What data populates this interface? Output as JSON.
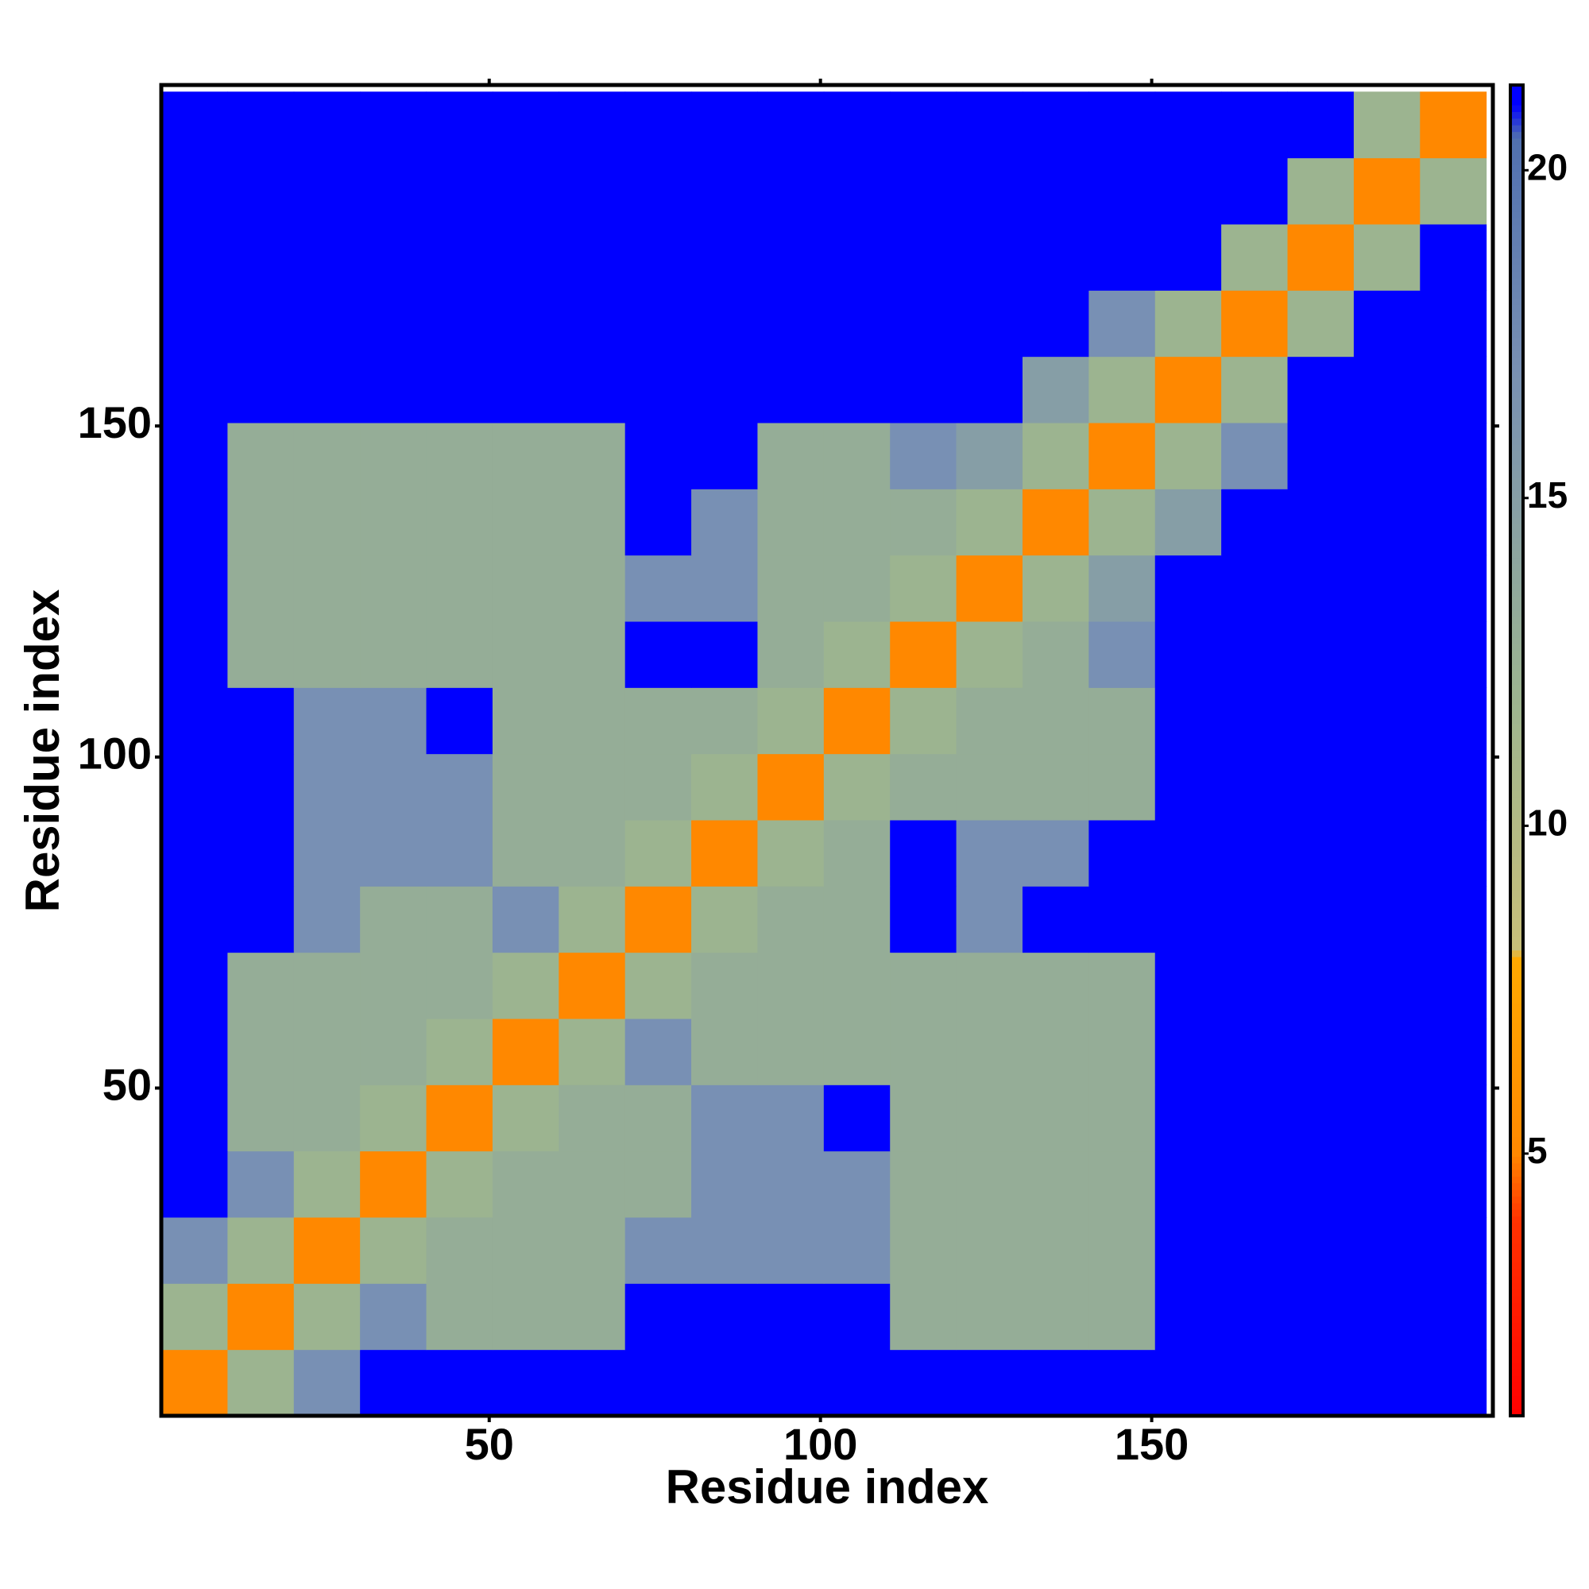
{
  "chart_data": {
    "type": "heatmap",
    "x_label": "Residue index",
    "y_label": "Residue index",
    "x": [
      5.5,
      15.5,
      25.5,
      35.5,
      45.5,
      55.5,
      65.5,
      75.5,
      85.5,
      95.5,
      105.5,
      115.5,
      125.5,
      135.5,
      145.5,
      155.5,
      165.5,
      175.5,
      185.5,
      195.5
    ],
    "y": [
      5.5,
      15.5,
      25.5,
      35.5,
      45.5,
      55.5,
      65.5,
      75.5,
      85.5,
      95.5,
      105.5,
      115.5,
      125.5,
      135.5,
      145.5,
      155.5,
      165.5,
      175.5,
      185.5,
      195.5
    ],
    "z": [
      [
        5,
        12,
        17,
        21,
        21,
        21,
        21,
        21,
        21,
        21,
        21,
        21,
        21,
        21,
        21,
        21,
        21,
        21,
        21,
        21
      ],
      [
        12,
        5,
        12,
        17,
        13,
        13,
        13,
        21,
        21,
        21,
        21,
        13,
        13,
        13,
        13,
        21,
        21,
        21,
        21,
        21
      ],
      [
        17,
        12,
        5,
        12,
        13,
        13,
        13,
        17,
        17,
        17,
        17,
        13,
        13,
        13,
        13,
        21,
        21,
        21,
        21,
        21
      ],
      [
        21,
        17,
        12,
        5,
        12,
        13,
        13,
        13,
        17,
        17,
        17,
        13,
        13,
        13,
        13,
        21,
        21,
        21,
        21,
        21
      ],
      [
        21,
        13,
        13,
        12,
        5,
        12,
        13,
        13,
        17,
        17,
        21,
        13,
        13,
        13,
        13,
        21,
        21,
        21,
        21,
        21
      ],
      [
        21,
        13,
        13,
        13,
        12,
        5,
        12,
        17,
        13,
        13,
        13,
        13,
        13,
        13,
        13,
        21,
        21,
        21,
        21,
        21
      ],
      [
        21,
        13,
        13,
        13,
        13,
        12,
        5,
        12,
        13,
        13,
        13,
        13,
        13,
        13,
        13,
        21,
        21,
        21,
        21,
        21
      ],
      [
        21,
        21,
        17,
        13,
        13,
        17,
        12,
        5,
        12,
        13,
        13,
        21,
        17,
        21,
        21,
        21,
        21,
        21,
        21,
        21
      ],
      [
        21,
        21,
        17,
        17,
        17,
        13,
        13,
        12,
        5,
        12,
        13,
        21,
        17,
        17,
        21,
        21,
        21,
        21,
        21,
        21
      ],
      [
        21,
        21,
        17,
        17,
        17,
        13,
        13,
        13,
        12,
        5,
        12,
        13,
        13,
        13,
        13,
        21,
        21,
        21,
        21,
        21
      ],
      [
        21,
        21,
        17,
        17,
        21,
        13,
        13,
        13,
        13,
        12,
        5,
        12,
        13,
        13,
        13,
        21,
        21,
        21,
        21,
        21
      ],
      [
        21,
        13,
        13,
        13,
        13,
        13,
        13,
        21,
        21,
        13,
        12,
        5,
        12,
        13,
        17,
        21,
        21,
        21,
        21,
        21
      ],
      [
        21,
        13,
        13,
        13,
        13,
        13,
        13,
        17,
        17,
        13,
        13,
        12,
        5,
        12,
        15,
        21,
        21,
        21,
        21,
        21
      ],
      [
        21,
        13,
        13,
        13,
        13,
        13,
        13,
        21,
        17,
        13,
        13,
        13,
        12,
        5,
        12,
        15,
        21,
        21,
        21,
        21
      ],
      [
        21,
        13,
        13,
        13,
        13,
        13,
        13,
        21,
        21,
        13,
        13,
        17,
        15,
        12,
        5,
        12,
        17,
        21,
        21,
        21
      ],
      [
        21,
        21,
        21,
        21,
        21,
        21,
        21,
        21,
        21,
        21,
        21,
        21,
        21,
        15,
        12,
        5,
        12,
        21,
        21,
        21
      ],
      [
        21,
        21,
        21,
        21,
        21,
        21,
        21,
        21,
        21,
        21,
        21,
        21,
        21,
        21,
        17,
        12,
        5,
        12,
        21,
        21
      ],
      [
        21,
        21,
        21,
        21,
        21,
        21,
        21,
        21,
        21,
        21,
        21,
        21,
        21,
        21,
        21,
        21,
        12,
        5,
        12,
        21
      ],
      [
        21,
        21,
        21,
        21,
        21,
        21,
        21,
        21,
        21,
        21,
        21,
        21,
        21,
        21,
        21,
        21,
        21,
        12,
        5,
        12
      ],
      [
        21,
        21,
        21,
        21,
        21,
        21,
        21,
        21,
        21,
        21,
        21,
        21,
        21,
        21,
        21,
        21,
        21,
        21,
        12,
        5
      ]
    ],
    "xlim": [
      0.5,
      201.5
    ],
    "ylim": [
      0.5,
      201.5
    ],
    "xticks": [
      50,
      100,
      150
    ],
    "yticks": [
      50,
      100,
      150
    ],
    "zlim": [
      1,
      21.3
    ],
    "colorbar_ticks": [
      5,
      10,
      15,
      20
    ],
    "colorscale": [
      [
        1,
        "#ff0000"
      ],
      [
        4,
        "#ff3300"
      ],
      [
        5,
        "#ff8800"
      ],
      [
        8,
        "#ffaa00"
      ],
      [
        8.1,
        "#c8c07a"
      ],
      [
        12,
        "#9cb490"
      ],
      [
        17,
        "#7890b4"
      ],
      [
        20.5,
        "#5070b0"
      ],
      [
        21,
        "#0000ff"
      ]
    ]
  }
}
